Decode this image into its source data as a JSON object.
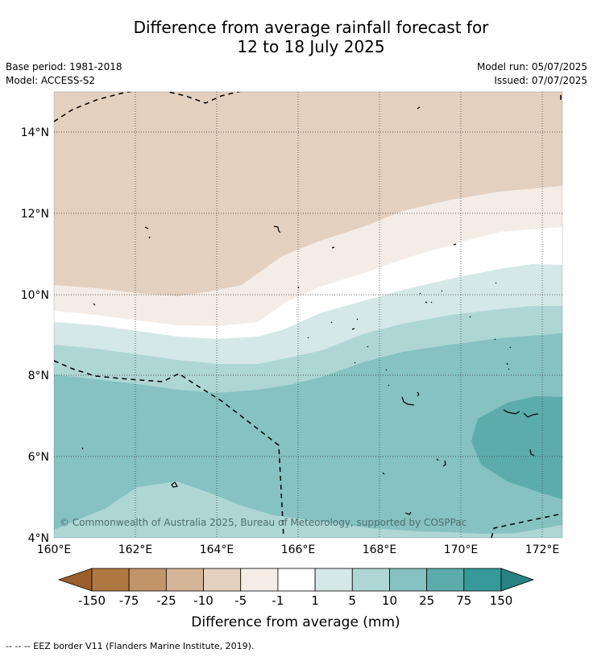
{
  "title_line1": "Difference from average rainfall forecast for",
  "title_line2": "12 to 18 July 2025",
  "base_period": "Base period: 1981-2018",
  "model": "Model: ACCESS-S2",
  "model_run": "Model run: 05/07/2025",
  "issued": "Issued: 07/07/2025",
  "copyright": "© Commonwealth of Australia 2025, Bureau of Meteorology, supported by COSPPac",
  "lat_labels": [
    "14°N",
    "12°N",
    "10°N",
    "8°N",
    "6°N",
    "4°N"
  ],
  "lon_labels": [
    "160°E",
    "162°E",
    "164°E",
    "166°E",
    "168°E",
    "170°E",
    "172°E"
  ],
  "colorbar": {
    "label": "Difference from average (mm)",
    "ticks": [
      "-150",
      "-75",
      "-25",
      "-10",
      "-5",
      "-1",
      "1",
      "5",
      "10",
      "25",
      "75",
      "150"
    ],
    "colors": [
      "#9b5e2c",
      "#b07840",
      "#c1946a",
      "#d4b496",
      "#e4d0bf",
      "#f4ede7",
      "#ffffff",
      "#d4e8e7",
      "#aed6d5",
      "#85c2c1",
      "#5cacac",
      "#35999a",
      "#2a8383"
    ]
  },
  "footnote": "--  --  -- EEZ border V11 (Flanders Marine Institute, 2019)."
}
